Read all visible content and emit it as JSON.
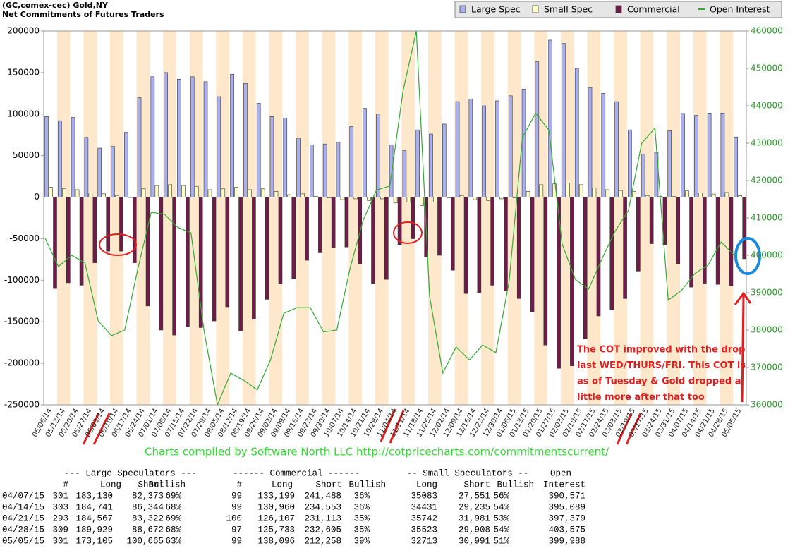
{
  "chart_data": {
    "type": "bar",
    "title": "(GC,comex-cec) Gold,NY",
    "subtitle": "Net Commitments of Futures Traders",
    "categories": [
      "05/06/14",
      "05/13/14",
      "05/20/14",
      "05/27/14",
      "06/03/14",
      "06/10/14",
      "06/17/14",
      "06/24/14",
      "07/01/14",
      "07/08/14",
      "07/15/14",
      "07/22/14",
      "07/29/14",
      "08/05/14",
      "08/12/14",
      "08/19/14",
      "08/26/14",
      "09/02/14",
      "09/09/14",
      "09/16/14",
      "09/23/14",
      "09/30/14",
      "10/07/14",
      "10/14/14",
      "10/21/14",
      "10/28/14",
      "11/04/14",
      "11/11/14",
      "11/18/14",
      "11/25/14",
      "12/02/14",
      "12/09/14",
      "12/16/14",
      "12/23/14",
      "12/30/14",
      "01/06/15",
      "01/13/15",
      "01/20/15",
      "01/27/15",
      "02/03/15",
      "02/10/15",
      "02/17/15",
      "02/24/15",
      "03/03/15",
      "03/10/15",
      "03/17/15",
      "03/24/15",
      "03/31/15",
      "04/07/15",
      "04/14/15",
      "04/21/15",
      "04/28/15",
      "05/05/15"
    ],
    "series": [
      {
        "name": "Large Spec",
        "color": "#aab0ee",
        "values": [
          97000,
          92000,
          96000,
          72000,
          59000,
          61000,
          78000,
          120000,
          145000,
          150000,
          142000,
          145000,
          139000,
          121000,
          148000,
          137000,
          113000,
          97000,
          95000,
          71000,
          63000,
          64000,
          66000,
          85000,
          107000,
          100000,
          63000,
          56000,
          81000,
          76000,
          88000,
          115000,
          118000,
          110000,
          116000,
          122000,
          130000,
          163000,
          189000,
          185000,
          155000,
          132000,
          125000,
          115000,
          81000,
          52000,
          54000,
          80000,
          100757,
          98397,
          101245,
          101257,
          72440
        ]
      },
      {
        "name": "Small Spec",
        "color": "#ffffc8",
        "values": [
          12000,
          10000,
          9000,
          5000,
          4000,
          2000,
          0,
          10000,
          14000,
          15000,
          14000,
          13000,
          9000,
          10000,
          12000,
          9000,
          10000,
          7000,
          3000,
          4000,
          1000,
          -1000,
          -3000,
          -2000,
          -4000,
          -2000,
          -7000,
          -6000,
          -10000,
          -6000,
          -1000,
          2000,
          -3000,
          -4000,
          -2000,
          -1000,
          7000,
          15000,
          16000,
          17000,
          15000,
          11000,
          9000,
          8000,
          7000,
          2000,
          1000,
          1000,
          7532,
          5196,
          3761,
          5615,
          1722
        ]
      },
      {
        "name": "Commercial",
        "color": "#6e1c48",
        "values": [
          -110000,
          -103000,
          -106000,
          -79000,
          -65000,
          -65000,
          -79000,
          -131000,
          -160000,
          -166000,
          -156000,
          -157000,
          -149000,
          -132000,
          -161000,
          -147000,
          -123000,
          -104000,
          -98000,
          -76000,
          -67000,
          -61000,
          -60000,
          -80000,
          -104000,
          -99000,
          -57000,
          -50000,
          -72000,
          -70000,
          -88000,
          -116000,
          -115000,
          -106000,
          -113000,
          -122000,
          -138000,
          -178000,
          -206000,
          -203000,
          -170000,
          -143000,
          -136000,
          -122000,
          -89000,
          -56000,
          -57000,
          -80000,
          -108289,
          -103593,
          -105006,
          -106872,
          -74162
        ]
      },
      {
        "name": "Open Interest",
        "color": "#33aa33",
        "type": "line",
        "axis": "y2",
        "values": [
          404500,
          397000,
          400000,
          398000,
          382500,
          378500,
          380000,
          396500,
          411500,
          411000,
          407500,
          406000,
          379500,
          360000,
          368500,
          366500,
          364000,
          372000,
          384500,
          386000,
          386000,
          379500,
          380000,
          396500,
          409500,
          417500,
          418500,
          444000,
          460000,
          389000,
          368500,
          375500,
          372000,
          376000,
          374000,
          393000,
          431500,
          438000,
          433500,
          403000,
          393500,
          391000,
          399000,
          406500,
          412000,
          430000,
          434000,
          388000,
          390571,
          395089,
          397379,
          403575,
          399988
        ]
      }
    ],
    "ylim": [
      -250000,
      200000
    ],
    "yticks": [
      -250000,
      -200000,
      -150000,
      -100000,
      -50000,
      0,
      50000,
      100000,
      150000,
      200000
    ],
    "y2lim": [
      360000,
      460000
    ],
    "y2ticks": [
      360000,
      370000,
      380000,
      390000,
      400000,
      410000,
      420000,
      430000,
      440000,
      450000,
      460000
    ],
    "legend": "top-right",
    "stripe_color": "#fde8cc",
    "annotation": [
      "The COT improved with the drop",
      "last WED/THURS/FRI. This COT is",
      "as of Tuesday & Gold dropped a",
      "little more after that too"
    ],
    "credit": "Charts compiled by Software North LLC  http://cotpricecharts.com/commitmentscurrent/"
  },
  "table": {
    "group_headers": [
      "--- Large Speculators ---",
      "------ Commercial ------",
      "-- Small Speculators --",
      "Open"
    ],
    "columns": [
      "#",
      "Long",
      "Short",
      "Bullish",
      "#",
      "Long",
      "Short",
      "Bullish",
      "Long",
      "Short",
      "Bullish",
      "Interest"
    ],
    "rows": [
      {
        "date": "04/07/15",
        "cells": [
          "301",
          "183,130",
          "82,373",
          "69%",
          "99",
          "133,199",
          "241,488",
          "36%",
          "35083",
          "27,551",
          "56%",
          "390,571"
        ]
      },
      {
        "date": "04/14/15",
        "cells": [
          "303",
          "184,741",
          "86,344",
          "68%",
          "99",
          "130,960",
          "234,553",
          "36%",
          "34431",
          "29,235",
          "54%",
          "395,089"
        ]
      },
      {
        "date": "04/21/15",
        "cells": [
          "293",
          "184,567",
          "83,322",
          "69%",
          "100",
          "126,107",
          "231,113",
          "35%",
          "35742",
          "31,981",
          "53%",
          "397,379"
        ]
      },
      {
        "date": "04/28/15",
        "cells": [
          "309",
          "189,929",
          "88,672",
          "68%",
          "97",
          "125,733",
          "232,605",
          "35%",
          "35523",
          "29,908",
          "54%",
          "403,575"
        ]
      },
      {
        "date": "05/05/15",
        "cells": [
          "301",
          "173,105",
          "100,665",
          "63%",
          "99",
          "138,096",
          "212,258",
          "39%",
          "32713",
          "30,991",
          "51%",
          "399,988"
        ]
      }
    ]
  }
}
